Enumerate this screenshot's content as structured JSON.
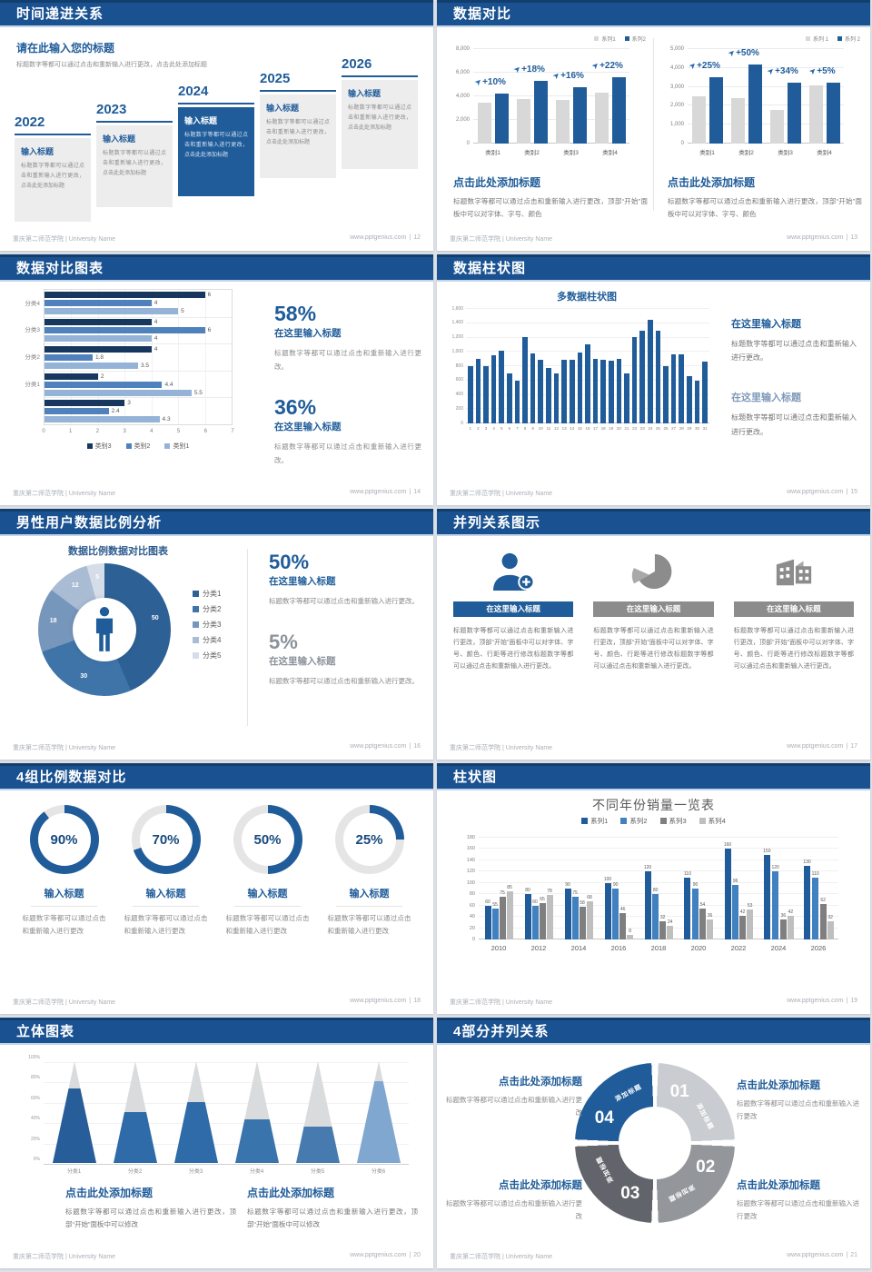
{
  "footer": {
    "school": "重庆第二师范学院 | University Name",
    "site": "www.pptgenius.com",
    "divider": "|"
  },
  "icons": {
    "growth_arrow": "➤"
  },
  "slides": [
    {
      "key": "timeline",
      "title": "时间递进关系",
      "page": "12",
      "intro_title": "请在此输入您的标题",
      "intro_body": "标题数字等都可以通过点击和重新输入进行更改，点击此处添加标题",
      "items": [
        {
          "year": "2022",
          "head": "输入标题",
          "body": "标题数字等都可以通过点击和重新输入进行更改，点击此处添加标题",
          "highlight": false
        },
        {
          "year": "2023",
          "head": "输入标题",
          "body": "标题数字等都可以通过点击和重新输入进行更改，点击此处添加标题",
          "highlight": false
        },
        {
          "year": "2024",
          "head": "输入标题",
          "body": "标题数字等都可以通过点击和重新输入进行更改，点击此处添加标题",
          "highlight": true
        },
        {
          "year": "2025",
          "head": "输入标题",
          "body": "标题数字等都可以通过点击和重新输入进行更改，点击此处添加标题",
          "highlight": false
        },
        {
          "year": "2026",
          "head": "输入标题",
          "body": "标题数字等都可以通过点击和重新输入进行更改，点击此处添加标题",
          "highlight": false
        }
      ]
    },
    {
      "key": "compare",
      "title": "数据对比",
      "page": "13",
      "captions": [
        {
          "title": "点击此处添加标题",
          "body": "标题数字等都可以通过点击和重新输入进行更改，顶部“开始”面板中可以对字体、字号、颜色"
        },
        {
          "title": "点击此处添加标题",
          "body": "标题数字等都可以通过点击和重新输入进行更改，顶部“开始”面板中可以对字体、字号、颜色"
        }
      ]
    },
    {
      "key": "hbar",
      "title": "数据对比图表",
      "page": "14",
      "stats": [
        {
          "pct": "58%",
          "title": "在这里输入标题",
          "body": "标题数字等都可以通过点击和重新输入进行更改。",
          "muted": false
        },
        {
          "pct": "36%",
          "title": "在这里输入标题",
          "body": "标题数字等都可以通过点击和重新输入进行更改。",
          "muted": false
        }
      ]
    },
    {
      "key": "multicol",
      "title": "数据柱状图",
      "page": "15",
      "blocks": [
        {
          "title": "在这里输入标题",
          "body": "标题数字等都可以通过点击和重新输入进行更改。",
          "muted": false
        },
        {
          "title": "在这里输入标题",
          "body": "标题数字等都可以通过点击和重新输入进行更改。",
          "muted": true
        }
      ]
    },
    {
      "key": "donut",
      "title": "男性用户数据比例分析",
      "page": "16",
      "stats": [
        {
          "pct": "50%",
          "title": "在这里输入标题",
          "body": "标题数字等都可以通过点击和重新输入进行更改。",
          "muted": false
        },
        {
          "pct": "5%",
          "title": "在这里输入标题",
          "body": "标题数字等都可以通过点击和重新输入进行更改。",
          "muted": true
        }
      ]
    },
    {
      "key": "cards",
      "title": "并列关系图示",
      "page": "17",
      "cards": [
        {
          "icon": "person-add-icon",
          "title": "在这里输入标题",
          "accent": true,
          "body": "标题数字等都可以通过点击和重新输入进行更改，顶部“开始”面板中可以对字体、字号、颜色、行距等进行修改标题数字等都可以通过点击和重新输入进行更改。"
        },
        {
          "icon": "pie-chart-icon",
          "title": "在这里输入标题",
          "accent": false,
          "body": "标题数字等都可以通过点击和重新输入进行更改，顶部“开始”面板中可以对字体、字号、颜色、行距等进行修改标题数字等都可以通过点击和重新输入进行更改。"
        },
        {
          "icon": "building-icon",
          "title": "在这里输入标题",
          "accent": false,
          "body": "标题数字等都可以通过点击和重新输入进行更改，顶部“开始”面板中可以对字体、字号、颜色、行距等进行修改标题数字等都可以通过点击和重新输入进行更改。"
        }
      ]
    },
    {
      "key": "rings",
      "title": "4组比例数据对比",
      "page": "18",
      "rings": [
        {
          "pct": "90%",
          "title": "输入标题",
          "body": "标题数字等都可以通过点击和重新输入进行更改"
        },
        {
          "pct": "70%",
          "title": "输入标题",
          "body": "标题数字等都可以通过点击和重新输入进行更改"
        },
        {
          "pct": "50%",
          "title": "输入标题",
          "body": "标题数字等都可以通过点击和重新输入进行更改"
        },
        {
          "pct": "25%",
          "title": "输入标题",
          "body": "标题数字等都可以通过点击和重新输入进行更改"
        }
      ]
    },
    {
      "key": "years",
      "title": "柱状图",
      "page": "19"
    },
    {
      "key": "cones",
      "title": "立体图表",
      "page": "20",
      "captions": [
        {
          "title": "点击此处添加标题",
          "body": "标题数字等都可以通过点击和重新输入进行更改，顶部“开始”面板中可以修改"
        },
        {
          "title": "点击此处添加标题",
          "body": "标题数字等都可以通过点击和重新输入进行更改，顶部“开始”面板中可以修改"
        }
      ]
    },
    {
      "key": "cycle",
      "title": "4部分并列关系",
      "page": "21",
      "callouts": [
        {
          "title": "点击此处添加标题",
          "body": "标题数字等都可以通过点击和重新输入进行更改"
        },
        {
          "title": "点击此处添加标题",
          "body": "标题数字等都可以通过点击和重新输入进行更改"
        },
        {
          "title": "点击此处添加标题",
          "body": "标题数字等都可以通过点击和重新输入进行更改"
        },
        {
          "title": "点击此处添加标题",
          "body": "标题数字等都可以通过点击和重新输入进行更改"
        }
      ]
    }
  ],
  "chart_data": [
    {
      "slide": 13,
      "panel": "left",
      "type": "bar",
      "categories": [
        "类别1",
        "类别2",
        "类别3",
        "类别4"
      ],
      "series": [
        {
          "name": "系列1",
          "color": "#D8D8D8",
          "values": [
            3500,
            3800,
            3700,
            4300
          ]
        },
        {
          "name": "系列2",
          "color": "#1F5C99",
          "values": [
            4200,
            5300,
            4800,
            5600
          ]
        }
      ],
      "growth_labels": [
        "+10%",
        "+18%",
        "+16%",
        "+22%"
      ],
      "ylim": [
        0,
        8000
      ],
      "yticks": [
        "0",
        "2,000",
        "4,000",
        "6,000",
        "8,000"
      ],
      "legend_position": "top-right",
      "grid": true
    },
    {
      "slide": 13,
      "panel": "right",
      "type": "bar",
      "categories": [
        "类别1",
        "类别2",
        "类别3",
        "类别4"
      ],
      "series": [
        {
          "name": "系列 1",
          "color": "#D8D8D8",
          "values": [
            2500,
            2400,
            1800,
            3100
          ]
        },
        {
          "name": "系列 2",
          "color": "#1F5C99",
          "values": [
            3500,
            4200,
            3200,
            3200
          ]
        }
      ],
      "growth_labels": [
        "+25%",
        "+50%",
        "+34%",
        "+5%"
      ],
      "ylim": [
        0,
        5000
      ],
      "yticks": [
        "0",
        "1,000",
        "2,000",
        "3,000",
        "4,000",
        "5,000"
      ],
      "legend_position": "top-right",
      "grid": true
    },
    {
      "slide": 14,
      "type": "bar-horizontal",
      "groups": [
        "分类4",
        "分类3",
        "分类2",
        "分类1",
        ""
      ],
      "series": [
        {
          "name": "类别3",
          "color": "#17375E",
          "values": [
            6,
            4,
            4,
            2,
            3
          ]
        },
        {
          "name": "类别2",
          "color": "#4F81BD",
          "values": [
            4,
            6,
            1.8,
            4.4,
            2.4
          ]
        },
        {
          "name": "类别1",
          "color": "#95B3D7",
          "values": [
            5,
            4,
            3.5,
            5.5,
            4.3
          ]
        }
      ],
      "xlim": [
        0,
        7
      ],
      "xticks": [
        "0",
        "1",
        "2",
        "3",
        "4",
        "5",
        "6",
        "7"
      ],
      "value_labels": true,
      "legend_position": "bottom",
      "grid": true
    },
    {
      "slide": 15,
      "type": "bar",
      "title": "多数据柱状图",
      "color": "#1F5C99",
      "x": [
        "1",
        "2",
        "3",
        "4",
        "5",
        "6",
        "7",
        "8",
        "9",
        "10",
        "11",
        "12",
        "13",
        "14",
        "15",
        "16",
        "17",
        "18",
        "19",
        "20",
        "21",
        "22",
        "23",
        "24",
        "25",
        "26",
        "27",
        "28",
        "29",
        "30",
        "31"
      ],
      "values": [
        800,
        900,
        800,
        950,
        1020,
        700,
        600,
        1210,
        980,
        890,
        780,
        700,
        890,
        890,
        990,
        1100,
        900,
        890,
        880,
        900,
        700,
        1210,
        1300,
        1450,
        1300,
        800,
        960,
        960,
        660,
        600,
        870
      ],
      "ylim": [
        0,
        1600
      ],
      "yticks": [
        "0",
        "200",
        "400",
        "600",
        "800",
        "1,000",
        "1,200",
        "1,400",
        "1,600"
      ],
      "grid": true
    },
    {
      "slide": 16,
      "type": "pie",
      "title": "数据比例数据对比图表",
      "labels": [
        "分类1",
        "分类2",
        "分类3",
        "分类4",
        "分类5"
      ],
      "values": [
        50,
        30,
        18,
        12,
        5
      ],
      "colors": [
        "#2D6195",
        "#3F74A8",
        "#7796BC",
        "#A9BCD4",
        "#D5DDE8"
      ],
      "legend_position": "right",
      "center_icon": "male-person-icon"
    },
    {
      "slide": 18,
      "type": "progress-rings",
      "values": [
        90,
        70,
        50,
        25
      ],
      "color": "#1F5C99",
      "track_color": "#E5E5E5"
    },
    {
      "slide": 19,
      "type": "bar",
      "title": "不同年份销量一览表",
      "categories": [
        "2010",
        "2012",
        "2014",
        "2016",
        "2018",
        "2020",
        "2022",
        "2024",
        "2026"
      ],
      "series": [
        {
          "name": "系列1",
          "color": "#1F5C99",
          "values": [
            60,
            80,
            90,
            100,
            120,
            110,
            160,
            150,
            130
          ]
        },
        {
          "name": "系列2",
          "color": "#4181C0",
          "values": [
            55,
            60,
            75,
            90,
            80,
            90,
            96,
            120,
            110
          ]
        },
        {
          "name": "系列3",
          "color": "#7F7F7F",
          "values": [
            75,
            65,
            58,
            46,
            32,
            54,
            42,
            36,
            62
          ]
        },
        {
          "name": "系列4",
          "color": "#BFBFBF",
          "values": [
            85,
            78,
            68,
            8,
            24,
            36,
            53,
            42,
            32
          ]
        }
      ],
      "ylim": [
        0,
        180
      ],
      "yticks": [
        "0",
        "20",
        "40",
        "60",
        "80",
        "100",
        "120",
        "140",
        "160",
        "180"
      ],
      "value_labels": true,
      "legend_position": "top",
      "grid": true
    },
    {
      "slide": 20,
      "type": "cone",
      "categories": [
        "分类1",
        "分类2",
        "分类3",
        "分类4",
        "分类5",
        "分类6"
      ],
      "values_pct": [
        73,
        50,
        60,
        43,
        36,
        80
      ],
      "colors": [
        "#275D99",
        "#2E6BA8",
        "#2E6BA8",
        "#3A74AC",
        "#477BB0",
        "#7FA7D0"
      ],
      "yticks": [
        "0%",
        "20%",
        "40%",
        "60%",
        "80%",
        "100%"
      ]
    },
    {
      "slide": 21,
      "type": "pie",
      "segments": [
        {
          "num": "01",
          "label": "添加标题",
          "color": "#C9CCD0"
        },
        {
          "num": "02",
          "label": "添加标题",
          "color": "#93979C"
        },
        {
          "num": "03",
          "label": "添加标题",
          "color": "#61646A"
        },
        {
          "num": "04",
          "label": "添加标题",
          "color": "#1F5C99"
        }
      ]
    }
  ]
}
